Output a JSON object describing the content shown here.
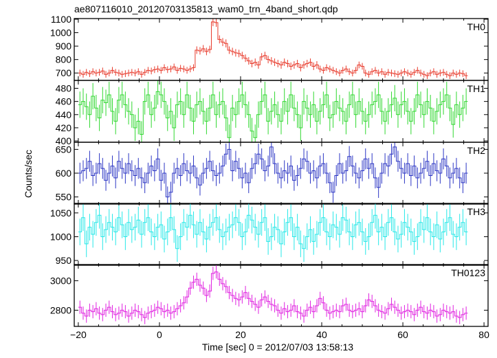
{
  "chart_data": {
    "type": "line",
    "title": "ae807116010_20120703135813_wam0_trn_4band_short.qdp",
    "xlabel": "Time [sec] 0 = 2012/07/03 13:58:13",
    "ylabel": "Counts/sec",
    "xlim": [
      -21,
      81
    ],
    "x_ticks": [
      -20,
      0,
      20,
      40,
      60,
      80
    ],
    "x_tick_labels": [
      "−20",
      "0",
      "20",
      "40",
      "60",
      "80"
    ],
    "grid": false,
    "panels": [
      {
        "name": "TH0",
        "color": "#e8392a",
        "ylim": [
          645,
          1105
        ],
        "y_ticks": [
          700,
          800,
          900,
          1000,
          1100
        ],
        "values": [
          700,
          690,
          705,
          695,
          710,
          700,
          705,
          715,
          690,
          700,
          720,
          705,
          700,
          690,
          695,
          700,
          705,
          700,
          710,
          690,
          705,
          720,
          715,
          725,
          730,
          720,
          740,
          725,
          730,
          745,
          720,
          735,
          730,
          720,
          730,
          740,
          870,
          865,
          880,
          860,
          875,
          1080,
          1075,
          950,
          930,
          920,
          870,
          860,
          850,
          845,
          830,
          810,
          790,
          770,
          780,
          760,
          820,
          830,
          800,
          790,
          780,
          770,
          760,
          780,
          770,
          750,
          760,
          770,
          740,
          760,
          770,
          780,
          750,
          760,
          730,
          720,
          740,
          730,
          720,
          710,
          700,
          720,
          730,
          710,
          700,
          720,
          760,
          750,
          700,
          690,
          710,
          720,
          700,
          710,
          690,
          705,
          700,
          695,
          690,
          700,
          710,
          700,
          690,
          705,
          720,
          700,
          690,
          680,
          700,
          710,
          690,
          700,
          705,
          690,
          680,
          700,
          690,
          700,
          695,
          680
        ],
        "errors": [
          25,
          25,
          25,
          25,
          25,
          25,
          25,
          25,
          25,
          25,
          25,
          25,
          25,
          25,
          25,
          25,
          25,
          25,
          25,
          25,
          25,
          25,
          25,
          25,
          25,
          25,
          25,
          25,
          25,
          25,
          25,
          25,
          25,
          25,
          25,
          25,
          28,
          28,
          28,
          28,
          28,
          32,
          32,
          30,
          30,
          30,
          28,
          28,
          28,
          28,
          28,
          28,
          28,
          28,
          28,
          28,
          28,
          28,
          28,
          28,
          28,
          28,
          28,
          28,
          28,
          28,
          28,
          28,
          28,
          28,
          28,
          28,
          28,
          28,
          25,
          25,
          25,
          25,
          25,
          25,
          25,
          25,
          25,
          25,
          25,
          25,
          25,
          25,
          25,
          25,
          25,
          25,
          25,
          25,
          25,
          25,
          25,
          25,
          25,
          25,
          25,
          25,
          25,
          25,
          25,
          25,
          25,
          25,
          25,
          25,
          25,
          25,
          25,
          25,
          25,
          25,
          25,
          25,
          25,
          25
        ]
      },
      {
        "name": "TH1",
        "color": "#2fd82f",
        "ylim": [
          398,
          492
        ],
        "y_ticks": [
          400,
          420,
          440,
          460,
          480
        ],
        "values": [
          455,
          460,
          452,
          440,
          468,
          450,
          435,
          462,
          458,
          470,
          445,
          430,
          462,
          470,
          455,
          445,
          440,
          420,
          430,
          410,
          460,
          470,
          440,
          450,
          475,
          470,
          460,
          435,
          445,
          420,
          455,
          460,
          440,
          470,
          450,
          430,
          455,
          460,
          445,
          430,
          450,
          470,
          440,
          455,
          460,
          435,
          405,
          450,
          440,
          460,
          470,
          455,
          440,
          415,
          405,
          440,
          460,
          470,
          430,
          445,
          455,
          440,
          430,
          460,
          445,
          470,
          450,
          440,
          420,
          460,
          450,
          440,
          455,
          430,
          445,
          455,
          470,
          435,
          440,
          460,
          450,
          445,
          430,
          455,
          470,
          440,
          460,
          445,
          430,
          440,
          455,
          460,
          470,
          445,
          430,
          445,
          455,
          465,
          440,
          455,
          460,
          445,
          430,
          445,
          470,
          455,
          440,
          460,
          450,
          430,
          445,
          455,
          460,
          470,
          450,
          425,
          455,
          440,
          450,
          460
        ],
        "errors": [
          20,
          20,
          20,
          20,
          20,
          20,
          20,
          20,
          20,
          20,
          20,
          20,
          20,
          20,
          20,
          20,
          20,
          20,
          20,
          20,
          20,
          20,
          20,
          20,
          20,
          20,
          20,
          20,
          20,
          20,
          20,
          20,
          20,
          20,
          20,
          20,
          20,
          20,
          20,
          20,
          20,
          20,
          20,
          20,
          20,
          20,
          20,
          20,
          20,
          20,
          20,
          20,
          20,
          20,
          20,
          20,
          20,
          20,
          20,
          20,
          20,
          20,
          20,
          20,
          20,
          20,
          20,
          20,
          20,
          20,
          20,
          20,
          20,
          20,
          20,
          20,
          20,
          20,
          20,
          20,
          20,
          20,
          20,
          20,
          20,
          20,
          20,
          20,
          20,
          20,
          20,
          20,
          20,
          20,
          20,
          20,
          20,
          20,
          20,
          20,
          20,
          20,
          20,
          20,
          20,
          20,
          20,
          20,
          20,
          20,
          20,
          20,
          20,
          20,
          20,
          20,
          20,
          20,
          20,
          20
        ]
      },
      {
        "name": "TH2",
        "color": "#2b35c4",
        "ylim": [
          535,
          665
        ],
        "y_ticks": [
          550,
          600,
          650
        ],
        "values": [
          600,
          605,
          610,
          625,
          595,
          600,
          620,
          610,
          585,
          600,
          615,
          590,
          625,
          610,
          600,
          620,
          605,
          595,
          610,
          590,
          580,
          600,
          615,
          605,
          630,
          585,
          600,
          550,
          560,
          600,
          610,
          595,
          620,
          605,
          600,
          615,
          590,
          575,
          600,
          610,
          625,
          605,
          595,
          600,
          615,
          640,
          650,
          605,
          625,
          610,
          590,
          600,
          580,
          610,
          620,
          640,
          630,
          605,
          615,
          655,
          620,
          600,
          590,
          605,
          600,
          615,
          585,
          595,
          610,
          630,
          625,
          600,
          605,
          590,
          615,
          620,
          600,
          580,
          560,
          595,
          620,
          600,
          605,
          635,
          615,
          600,
          590,
          605,
          630,
          610,
          620,
          590,
          570,
          600,
          620,
          615,
          640,
          655,
          625,
          610,
          600,
          620,
          595,
          615,
          590,
          600,
          610,
          625,
          595,
          620,
          605,
          600,
          630,
          615,
          590,
          600,
          610,
          590,
          580,
          600
        ],
        "errors": [
          22,
          22,
          22,
          22,
          22,
          22,
          22,
          22,
          22,
          22,
          22,
          22,
          22,
          22,
          22,
          22,
          22,
          22,
          22,
          22,
          22,
          22,
          22,
          22,
          22,
          22,
          22,
          22,
          22,
          22,
          22,
          22,
          22,
          22,
          22,
          22,
          22,
          22,
          22,
          22,
          22,
          22,
          22,
          22,
          22,
          22,
          22,
          22,
          22,
          22,
          22,
          22,
          22,
          22,
          22,
          22,
          22,
          22,
          22,
          22,
          22,
          22,
          22,
          22,
          22,
          22,
          22,
          22,
          22,
          22,
          22,
          22,
          22,
          22,
          22,
          22,
          22,
          22,
          22,
          22,
          22,
          22,
          22,
          22,
          22,
          22,
          22,
          22,
          22,
          22,
          22,
          22,
          22,
          22,
          22,
          22,
          22,
          22,
          22,
          22,
          22,
          22,
          22,
          22,
          22,
          22,
          22,
          22,
          22,
          22,
          22,
          22,
          22,
          22,
          22,
          22,
          22,
          22,
          22,
          22
        ]
      },
      {
        "name": "TH3",
        "color": "#25e8e8",
        "ylim": [
          940,
          1070
        ],
        "y_ticks": [
          950,
          1000,
          1050
        ],
        "values": [
          1010,
          1040,
          985,
          1020,
          1005,
          1030,
          1045,
          1000,
          1015,
          1030,
          1020,
          1010,
          1040,
          1025,
          1000,
          1030,
          1015,
          1020,
          1035,
          1005,
          1030,
          1040,
          1010,
          1000,
          1020,
          1025,
          995,
          1010,
          1040,
          1015,
          975,
          1000,
          1030,
          1020,
          1045,
          1025,
          1005,
          1030,
          1010,
          995,
          1020,
          1030,
          1040,
          1015,
          1000,
          1010,
          1020,
          1025,
          1040,
          1030,
          1000,
          1010,
          1045,
          1035,
          1020,
          1005,
          1030,
          1040,
          990,
          1000,
          1020,
          1015,
          985,
          1010,
          1030,
          1040,
          1000,
          1020,
          985,
          975,
          1000,
          1015,
          990,
          1005,
          1030,
          1040,
          1010,
          1000,
          1025,
          1020,
          1005,
          1040,
          1035,
          1010,
          1000,
          1025,
          1030,
          1010,
          990,
          1000,
          1030,
          1045,
          1010,
          1020,
          1000,
          1030,
          1040,
          1010,
          995,
          1005,
          1030,
          1020,
          1010,
          990,
          1000,
          1030,
          1015,
          1040,
          1010,
          1000,
          1025,
          995,
          1010,
          1030,
          1040,
          1005,
          1000,
          1020,
          1030,
          1010
        ],
        "errors": [
          28,
          28,
          28,
          28,
          28,
          28,
          28,
          28,
          28,
          28,
          28,
          28,
          28,
          28,
          28,
          28,
          28,
          28,
          28,
          28,
          28,
          28,
          28,
          28,
          28,
          28,
          28,
          28,
          28,
          28,
          28,
          28,
          28,
          28,
          28,
          28,
          28,
          28,
          28,
          28,
          28,
          28,
          28,
          28,
          28,
          28,
          28,
          28,
          28,
          28,
          28,
          28,
          28,
          28,
          28,
          28,
          28,
          28,
          28,
          28,
          28,
          28,
          28,
          28,
          28,
          28,
          28,
          28,
          28,
          28,
          28,
          28,
          28,
          28,
          28,
          28,
          28,
          28,
          28,
          28,
          28,
          28,
          28,
          28,
          28,
          28,
          28,
          28,
          28,
          28,
          28,
          28,
          28,
          28,
          28,
          28,
          28,
          28,
          28,
          28,
          28,
          28,
          28,
          28,
          28,
          28,
          28,
          28,
          28,
          28,
          28,
          28,
          28,
          28,
          28,
          28,
          28,
          28,
          28,
          28
        ]
      },
      {
        "name": "TH0123",
        "color": "#e020e0",
        "ylim": [
          2690,
          3110
        ],
        "y_ticks": [
          2800,
          3000
        ],
        "values": [
          2820,
          2780,
          2760,
          2800,
          2790,
          2810,
          2780,
          2770,
          2800,
          2820,
          2790,
          2770,
          2780,
          2800,
          2790,
          2760,
          2780,
          2800,
          2790,
          2770,
          2750,
          2780,
          2790,
          2800,
          2820,
          2810,
          2790,
          2800,
          2780,
          2790,
          2810,
          2830,
          2850,
          2890,
          2950,
          2990,
          3010,
          2970,
          2950,
          2900,
          2930,
          3050,
          3060,
          3010,
          2980,
          2960,
          2920,
          2900,
          2880,
          2870,
          2890,
          2920,
          2880,
          2860,
          2840,
          2820,
          2870,
          2890,
          2860,
          2840,
          2830,
          2800,
          2780,
          2810,
          2790,
          2800,
          2830,
          2790,
          2780,
          2760,
          2800,
          2820,
          2790,
          2830,
          2880,
          2850,
          2800,
          2780,
          2790,
          2800,
          2790,
          2830,
          2840,
          2800,
          2790,
          2800,
          2810,
          2790,
          2830,
          2870,
          2860,
          2830,
          2800,
          2790,
          2780,
          2810,
          2840,
          2820,
          2800,
          2780,
          2790,
          2800,
          2790,
          2770,
          2800,
          2820,
          2790,
          2780,
          2800,
          2790,
          2760,
          2770,
          2800,
          2790,
          2780,
          2790,
          2760,
          2750,
          2770,
          2780
        ],
        "errors": [
          45,
          45,
          45,
          45,
          45,
          45,
          45,
          45,
          45,
          45,
          45,
          45,
          45,
          45,
          45,
          45,
          45,
          45,
          45,
          45,
          45,
          45,
          45,
          45,
          45,
          45,
          45,
          45,
          45,
          45,
          45,
          45,
          45,
          45,
          45,
          45,
          45,
          45,
          45,
          45,
          45,
          45,
          45,
          45,
          45,
          45,
          45,
          45,
          45,
          45,
          45,
          45,
          45,
          45,
          45,
          45,
          45,
          45,
          45,
          45,
          45,
          45,
          45,
          45,
          45,
          45,
          45,
          45,
          45,
          45,
          45,
          45,
          45,
          45,
          45,
          45,
          45,
          45,
          45,
          45,
          45,
          45,
          45,
          45,
          45,
          45,
          45,
          45,
          45,
          45,
          45,
          45,
          45,
          45,
          45,
          45,
          45,
          45,
          45,
          45,
          45,
          45,
          45,
          45,
          45,
          45,
          45,
          45,
          45,
          45,
          45,
          45,
          45,
          45,
          45,
          45,
          45,
          45,
          45,
          45
        ]
      }
    ],
    "x_start": -20,
    "bin_width": 0.8
  }
}
